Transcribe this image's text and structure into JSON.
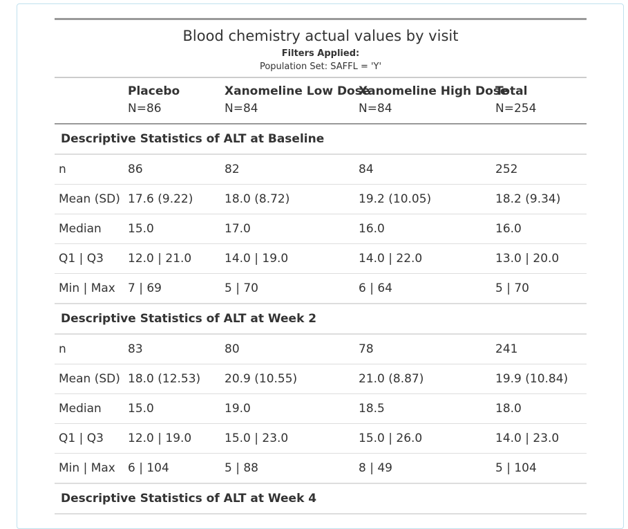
{
  "table": {
    "title": "Blood chemistry actual values by visit",
    "filters_label": "Filters Applied:",
    "population": "Population Set: SAFFL = 'Y'",
    "columns": [
      {
        "label": "Placebo",
        "n": "N=86"
      },
      {
        "label": "Xanomeline Low Dose",
        "n": "N=84"
      },
      {
        "label": "Xanomeline High Dose",
        "n": "N=84"
      },
      {
        "label": "Total",
        "n": "N=254"
      }
    ],
    "sections": [
      {
        "title": "Descriptive Statistics of ALT at Baseline",
        "rows": [
          {
            "stat": "n",
            "values": [
              "86",
              "82",
              "84",
              "252"
            ]
          },
          {
            "stat": "Mean (SD)",
            "values": [
              "17.6 (9.22)",
              "18.0 (8.72)",
              "19.2 (10.05)",
              "18.2 (9.34)"
            ]
          },
          {
            "stat": "Median",
            "values": [
              "15.0",
              "17.0",
              "16.0",
              "16.0"
            ]
          },
          {
            "stat": "Q1 | Q3",
            "values": [
              "12.0 | 21.0",
              "14.0 | 19.0",
              "14.0 | 22.0",
              "13.0 | 20.0"
            ]
          },
          {
            "stat": "Min | Max",
            "values": [
              "7 | 69",
              "5 | 70",
              "6 | 64",
              "5 | 70"
            ]
          }
        ]
      },
      {
        "title": "Descriptive Statistics of ALT at Week 2",
        "rows": [
          {
            "stat": "n",
            "values": [
              "83",
              "80",
              "78",
              "241"
            ]
          },
          {
            "stat": "Mean (SD)",
            "values": [
              "18.0 (12.53)",
              "20.9 (10.55)",
              "21.0 (8.87)",
              "19.9 (10.84)"
            ]
          },
          {
            "stat": "Median",
            "values": [
              "15.0",
              "19.0",
              "18.5",
              "18.0"
            ]
          },
          {
            "stat": "Q1 | Q3",
            "values": [
              "12.0 | 19.0",
              "15.0 | 23.0",
              "15.0 | 26.0",
              "14.0 | 23.0"
            ]
          },
          {
            "stat": "Min | Max",
            "values": [
              "6 | 104",
              "5 | 88",
              "8 | 49",
              "5 | 104"
            ]
          }
        ]
      },
      {
        "title": "Descriptive Statistics of ALT at Week 4",
        "rows": []
      }
    ]
  }
}
